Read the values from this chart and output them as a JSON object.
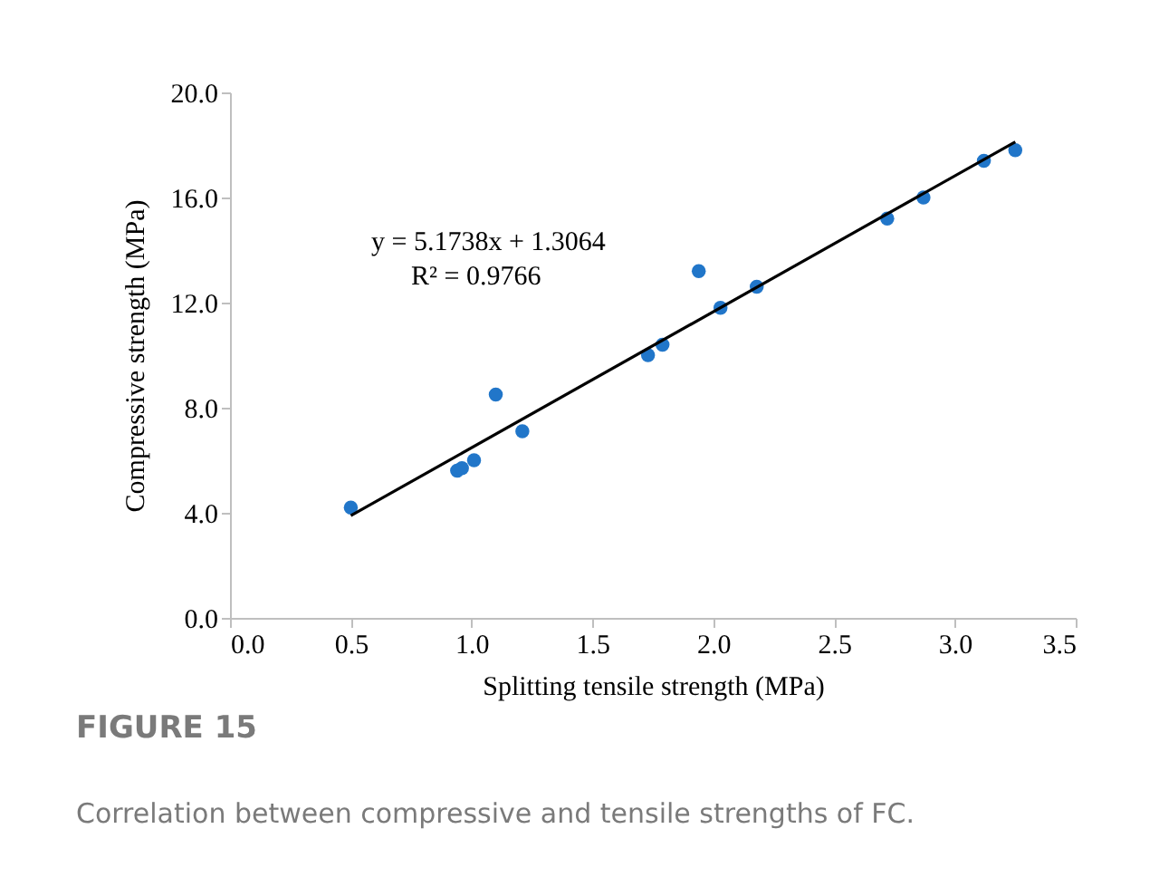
{
  "chart_data": {
    "type": "scatter",
    "xlabel": "Splitting tensile strength (MPa)",
    "ylabel": "Compressive strength (MPa)",
    "xlim": [
      0,
      3.5
    ],
    "ylim": [
      0,
      20
    ],
    "xticks": [
      {
        "value": 0,
        "label": "0.0"
      },
      {
        "value": 0.5,
        "label": "0.5"
      },
      {
        "value": 1,
        "label": "1.0"
      },
      {
        "value": 1.5,
        "label": "1.5"
      },
      {
        "value": 2,
        "label": "2.0"
      },
      {
        "value": 2.5,
        "label": "2.5"
      },
      {
        "value": 3,
        "label": "3.0"
      },
      {
        "value": 3.5,
        "label": "3.5"
      }
    ],
    "yticks": [
      {
        "value": 0,
        "label": "0.0"
      },
      {
        "value": 4,
        "label": "4.0"
      },
      {
        "value": 8,
        "label": "8.0"
      },
      {
        "value": 12,
        "label": "12.0"
      },
      {
        "value": 16,
        "label": "16.0"
      },
      {
        "value": 20,
        "label": "20.0"
      }
    ],
    "marker": "circle",
    "series": [
      {
        "type": "scatter",
        "color": "#2176c9",
        "x": [
          0.5,
          0.94,
          0.96,
          1.01,
          1.1,
          1.21,
          1.73,
          1.79,
          1.94,
          2.03,
          2.18,
          2.72,
          2.87,
          3.12,
          3.25
        ],
        "values": [
          4.2,
          5.6,
          5.7,
          6.0,
          8.5,
          7.1,
          10.0,
          10.4,
          13.2,
          11.8,
          12.6,
          15.2,
          16.0,
          17.4,
          17.8
        ]
      },
      {
        "type": "line",
        "color": "#000000",
        "marker": "none",
        "x": [
          0.5,
          3.25
        ],
        "values": [
          3.89,
          18.12
        ]
      }
    ],
    "annotations": [
      "y = 5.1738x + 1.3064",
      "R² = 0.9766",
      "FIGURE 15",
      "Correlation between compressive and tensile strengths of FC."
    ]
  }
}
